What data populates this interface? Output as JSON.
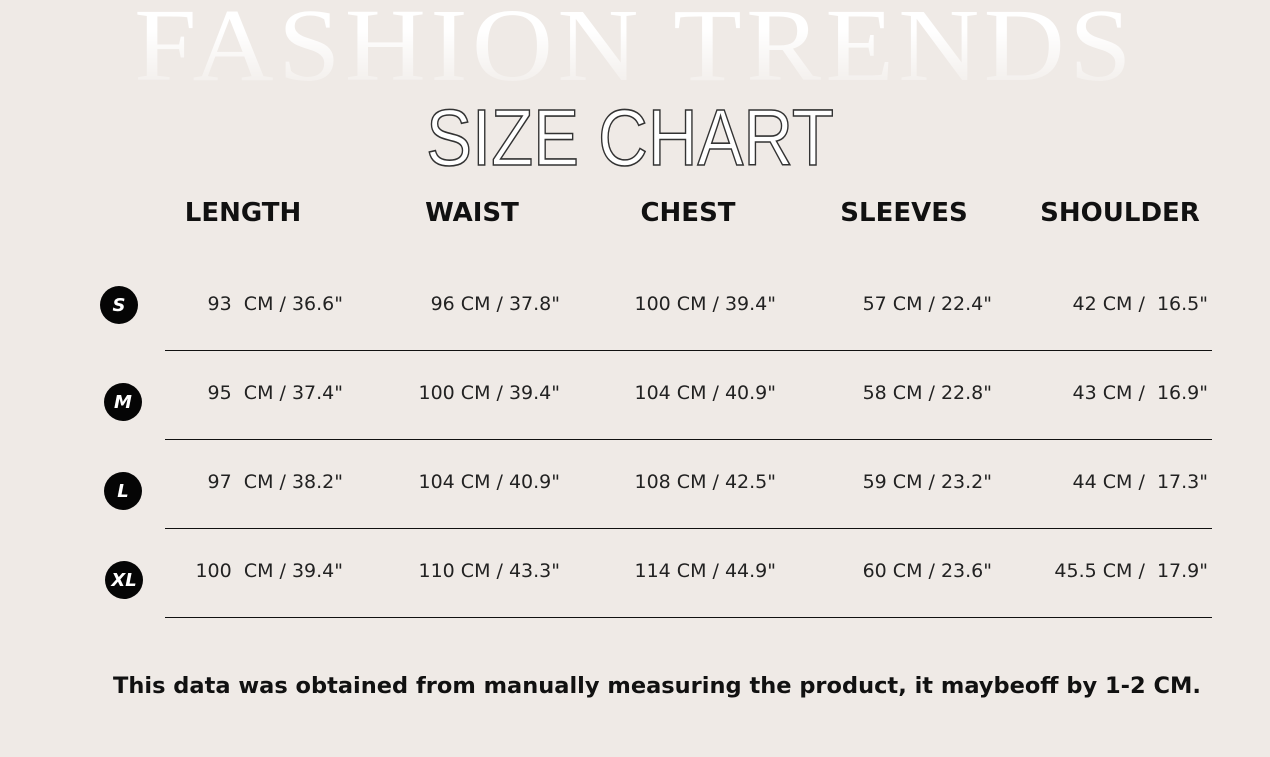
{
  "background_word": "FASHION TRENDS",
  "title": "SIZE CHART",
  "columns": [
    "LENGTH",
    "WAIST",
    "CHEST",
    "SLEEVES",
    "SHOULDER"
  ],
  "rows": [
    {
      "size": "S",
      "values": [
        "93  CM / 36.6\"",
        "96 CM / 37.8\"",
        "100 CM / 39.4\"",
        "57 CM / 22.4\"",
        "42 CM /  16.5\""
      ]
    },
    {
      "size": "M",
      "values": [
        "95  CM / 37.4\"",
        "100 CM / 39.4\"",
        "104 CM / 40.9\"",
        "58 CM / 22.8\"",
        "43 CM /  16.9\""
      ]
    },
    {
      "size": "L",
      "values": [
        "97  CM / 38.2\"",
        "104 CM / 40.9\"",
        "108 CM / 42.5\"",
        "59 CM / 23.2\"",
        "44 CM /  17.3\""
      ]
    },
    {
      "size": "XL",
      "values": [
        "100  CM / 39.4\"",
        "110 CM / 43.3\"",
        "114 CM / 44.9\"",
        "60 CM / 23.6\"",
        "45.5 CM /  17.9\""
      ]
    }
  ],
  "note": "This data was obtained from manually measuring the product, it maybeoff by 1-2 CM.",
  "colors": {
    "background": "#efeae6",
    "badge": "#050505",
    "text": "#111111"
  }
}
